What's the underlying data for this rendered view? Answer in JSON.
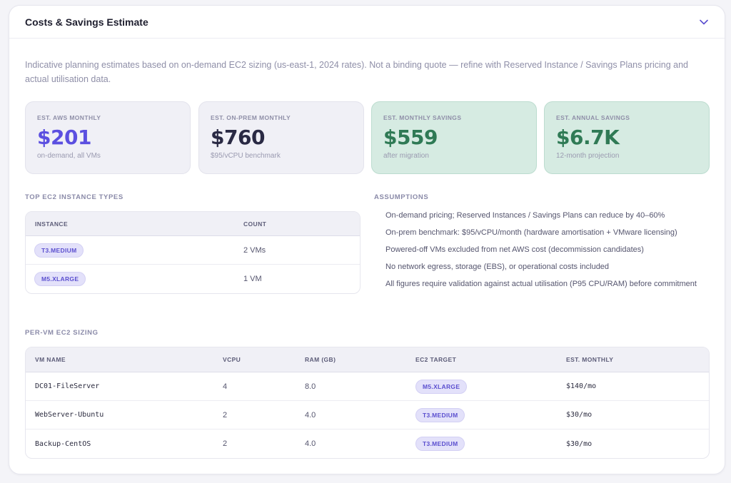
{
  "panel": {
    "title": "Costs & Savings Estimate",
    "intro": "Indicative planning estimates based on on-demand EC2 sizing (us-east-1, 2024 rates). Not a binding quote — refine with Reserved Instance / Savings Plans pricing and actual utilisation data."
  },
  "cards": [
    {
      "label": "EST. AWS MONTHLY",
      "value": "$201",
      "sub": "on-demand, all VMs",
      "color": "#5b4fe0"
    },
    {
      "label": "EST. ON-PREM MONTHLY",
      "value": "$760",
      "sub": "$95/vCPU benchmark",
      "color": "#2a2a44"
    },
    {
      "label": "EST. MONTHLY SAVINGS",
      "value": "$559",
      "sub": "after migration",
      "color": "#2f7a55"
    },
    {
      "label": "EST. ANNUAL SAVINGS",
      "value": "$6.7K",
      "sub": "12-month projection",
      "color": "#2f7a55"
    }
  ],
  "top_types": {
    "heading": "TOP EC2 INSTANCE TYPES",
    "columns": [
      "INSTANCE",
      "COUNT"
    ],
    "rows": [
      {
        "instance": "T3.MEDIUM",
        "count": "2 VMs"
      },
      {
        "instance": "M5.XLARGE",
        "count": "1 VM"
      }
    ]
  },
  "assumptions": {
    "heading": "ASSUMPTIONS",
    "items": [
      "On-demand pricing; Reserved Instances / Savings Plans can reduce by 40–60%",
      "On-prem benchmark: $95/vCPU/month (hardware amortisation + VMware licensing)",
      "Powered-off VMs excluded from net AWS cost (decommission candidates)",
      "No network egress, storage (EBS), or operational costs included",
      "All figures require validation against actual utilisation (P95 CPU/RAM) before commitment"
    ]
  },
  "per_vm": {
    "heading": "PER-VM EC2 SIZING",
    "columns": [
      "VM NAME",
      "VCPU",
      "RAM (GB)",
      "EC2 TARGET",
      "EST. MONTHLY"
    ],
    "rows": [
      {
        "name": "DC01-FileServer",
        "vcpu": "4",
        "ram": "8.0",
        "target": "M5.XLARGE",
        "monthly": "$140/mo"
      },
      {
        "name": "WebServer-Ubuntu",
        "vcpu": "2",
        "ram": "4.0",
        "target": "T3.MEDIUM",
        "monthly": "$30/mo"
      },
      {
        "name": "Backup-CentOS",
        "vcpu": "2",
        "ram": "4.0",
        "target": "T3.MEDIUM",
        "monthly": "$30/mo"
      }
    ]
  },
  "icons": {
    "collapse": "chevron-down-icon"
  }
}
